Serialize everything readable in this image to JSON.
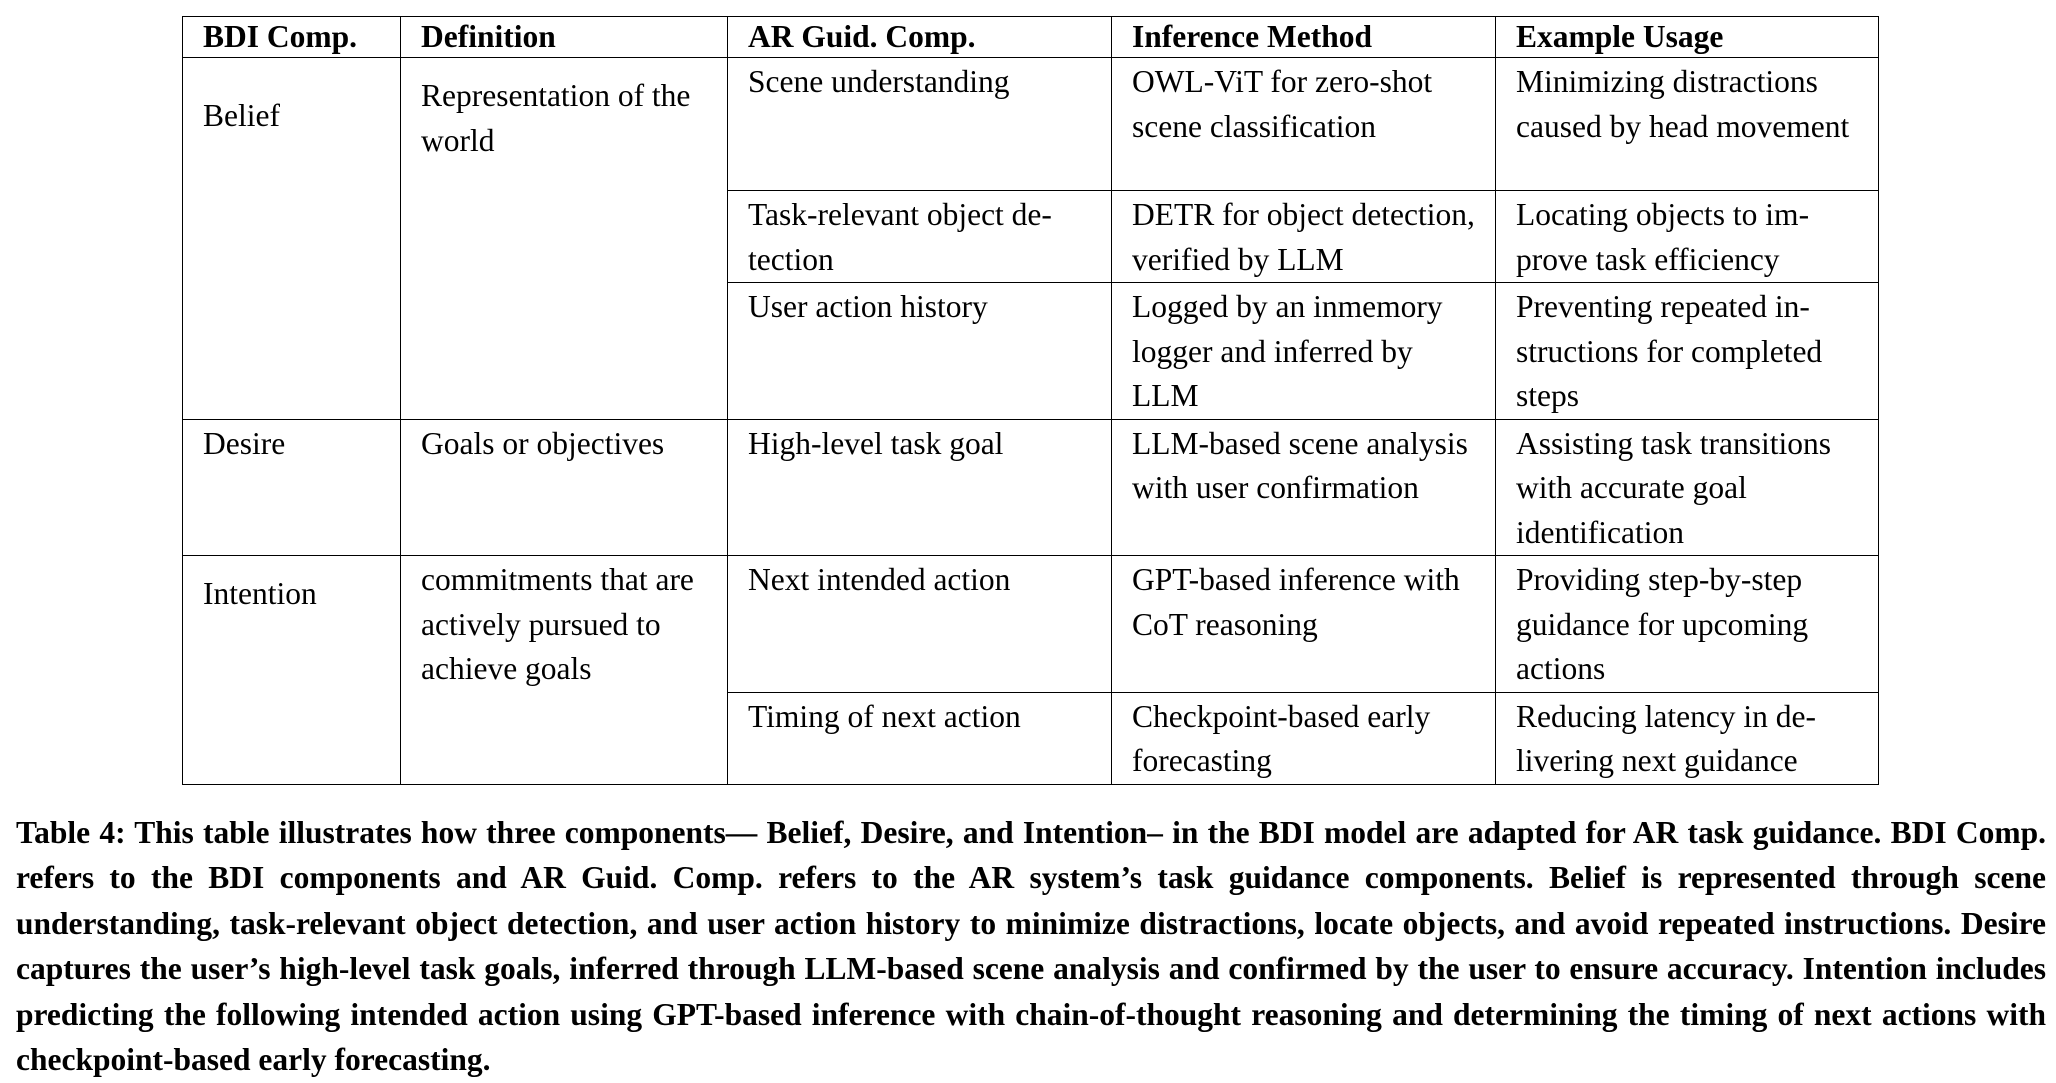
{
  "table": {
    "headers": [
      "BDI Comp.",
      "Definition",
      "AR Guid. Comp.",
      "Inference Method",
      "Example Usage"
    ],
    "groups": [
      {
        "component": "Belief",
        "definition": "Representation of the world",
        "rows": [
          {
            "ar": "Scene understanding",
            "method": "OWL-ViT for zero-shot scene classification",
            "usage": "Minimizing distractions caused by head move­ment"
          },
          {
            "ar": "Task-relevant object de­tection",
            "method": "DETR for object detec­tion, verified by LLM",
            "usage": "Locating objects to im­prove task efficiency"
          },
          {
            "ar": "User action history",
            "method": "Logged by an in­memory logger and inferred by LLM",
            "usage": "Preventing repeated in­structions for completed steps"
          }
        ]
      },
      {
        "component": "Desire",
        "definition": "Goals or objectives",
        "rows": [
          {
            "ar": "High-level task goal",
            "method": "LLM-based scene anal­ysis with user confirma­tion",
            "usage": "Assisting task transi­tions with accurate goal identification"
          }
        ]
      },
      {
        "component": "Intention",
        "definition": "commitments that are actively pursued to achieve goals",
        "rows": [
          {
            "ar": "Next intended action",
            "method": "GPT-based inference with CoT reasoning",
            "usage": "Providing step-by-step guidance for upcoming actions"
          },
          {
            "ar": "Timing of next action",
            "method": "Checkpoint-based early forecasting",
            "usage": "Reducing latency in de­livering next guidance"
          }
        ]
      }
    ]
  },
  "caption": "Table 4: This table illustrates how three components— Belief, Desire, and Intention– in the BDI model are adapted for AR task guidance. BDI Comp. refers to the BDI components and AR Guid. Comp. refers to the AR system’s task guidance components. Belief is represented through scene understanding, task-relevant object detection, and user action history to minimize distractions, locate objects, and avoid repeated instructions. Desire captures the user’s high-level task goals, inferred through LLM-based scene analysis and confirmed by the user to ensure accuracy. Intention includes predicting the following intended action using GPT-based inference with chain-of-thought reasoning and determining the timing of next actions with checkpoint-based early forecasting."
}
